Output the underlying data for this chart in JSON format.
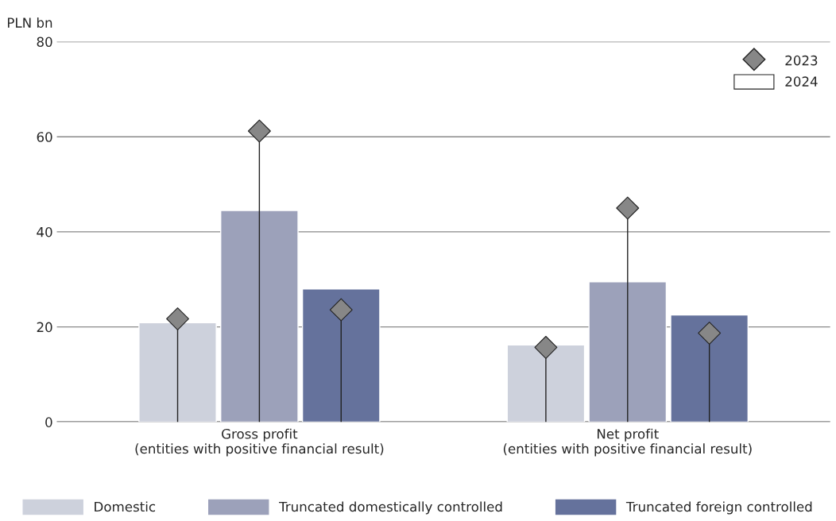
{
  "chart_data": {
    "type": "bar",
    "ylabel": "PLN bn",
    "categories": [
      "Gross profit\n(entities with positive financial result)",
      "Net profit\n(entities with positive financial result)"
    ],
    "series": [
      {
        "name": "Domestic",
        "color": "#cdd1dc",
        "values": [
          20.9,
          16.2
        ]
      },
      {
        "name": "Truncated domestically controlled",
        "color": "#9ca1ba",
        "values": [
          44.5,
          29.5
        ]
      },
      {
        "name": "Truncated foreign controlled",
        "color": "#65729c",
        "values": [
          28.0,
          22.5
        ]
      },
      {
        "name": "2023",
        "type": "lollipop",
        "color": "#878787",
        "values": [
          21.7,
          15.7
        ]
      },
      {
        "type": "lollipop",
        "color": "#878787",
        "values": [
          61.2,
          45.0
        ]
      },
      {
        "type": "lollipop",
        "color": "#878787",
        "values": [
          23.6,
          18.7
        ]
      }
    ],
    "annotations": [
      "2024"
    ],
    "ylim": [
      0,
      80
    ],
    "yticks": [
      0,
      20,
      40,
      60,
      80
    ],
    "grid": "y",
    "legend": "bottom",
    "marker": "diamond"
  }
}
